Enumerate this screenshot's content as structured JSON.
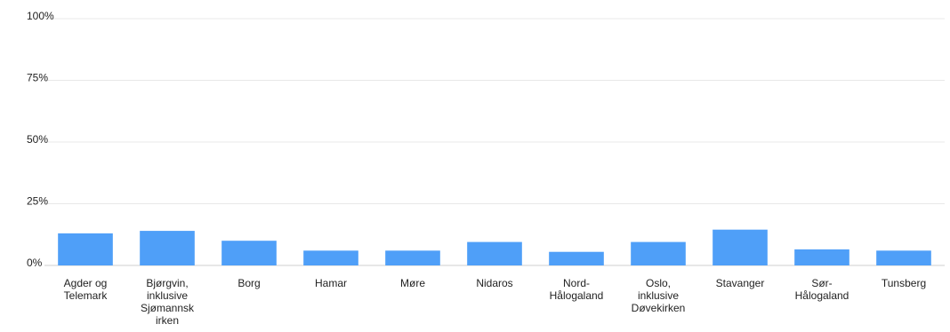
{
  "chart_data": {
    "type": "bar",
    "categories": [
      [
        "Agder og",
        "Telemark"
      ],
      [
        "Bjørgvin,",
        "inklusive",
        "Sjømannsk",
        "irken"
      ],
      [
        "Borg"
      ],
      [
        "Hamar"
      ],
      [
        "Møre"
      ],
      [
        "Nidaros"
      ],
      [
        "Nord-",
        "Hålogaland"
      ],
      [
        "Oslo,",
        "inklusive",
        "Døvekirken"
      ],
      [
        "Stavanger"
      ],
      [
        "Sør-",
        "Hålogaland"
      ],
      [
        "Tunsberg"
      ]
    ],
    "values": [
      13,
      14,
      10,
      6,
      6,
      9.5,
      5.5,
      9.5,
      14.5,
      6.5,
      6
    ],
    "ylim": [
      0,
      100
    ],
    "yticks": [
      0,
      25,
      50,
      75,
      100
    ],
    "ytick_labels": [
      "0%",
      "25%",
      "50%",
      "75%",
      "100%"
    ],
    "grid": true,
    "bar_color": "#4f9ff8",
    "title": "",
    "xlabel": "",
    "ylabel": ""
  }
}
